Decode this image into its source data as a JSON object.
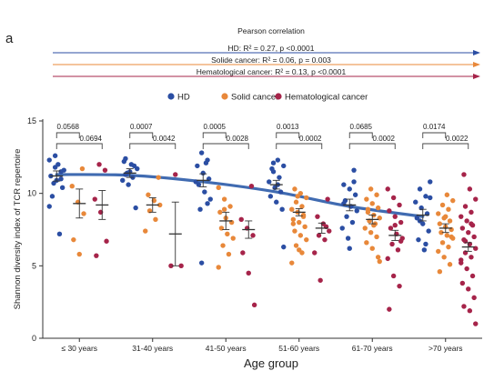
{
  "panel_label": "a",
  "pearson": {
    "title": "Pearson correlation",
    "lines": [
      {
        "label": "HD: R² = 0.27,  p <0.0001",
        "color": "#2b4ea3"
      },
      {
        "label": "Solide cancer: R² = 0.06,  p = 0.003",
        "color": "#e8883a"
      },
      {
        "label": "Hematological cancer: R² = 0.13, p <0.0001",
        "color": "#a6244a"
      }
    ]
  },
  "chart_data": {
    "type": "scatter",
    "title": "",
    "xlabel": "Age group",
    "ylabel": "Shannon diversity index of TCR repertoire",
    "ylim": [
      0,
      15
    ],
    "yticks": [
      0,
      5,
      10,
      15
    ],
    "categories": [
      "≤ 30 years",
      "31-40 years",
      "41-50 years",
      "51-60 years",
      "61-70 years",
      ">70 years"
    ],
    "legend": {
      "position": "top",
      "entries": [
        "HD",
        "Solid cancer",
        "Hematological cancer"
      ]
    },
    "series": [
      {
        "name": "HD",
        "color": "#2b4ea3",
        "mean": [
          11.2,
          11.4,
          10.9,
          10.6,
          9.2,
          8.5
        ],
        "sem": [
          0.35,
          0.3,
          0.45,
          0.3,
          0.4,
          0.4
        ],
        "points": [
          [
            12.3,
            11.8,
            11.5,
            11.2,
            10.9,
            10.4,
            9.8,
            12.0,
            11.6,
            10.7,
            7.2,
            9.1,
            12.6,
            11.0
          ],
          [
            12.4,
            12.0,
            11.7,
            11.4,
            11.1,
            10.9,
            10.6,
            11.9,
            12.2,
            11.5,
            9.0,
            11.3
          ],
          [
            12.8,
            12.3,
            11.9,
            11.4,
            11.0,
            10.6,
            10.1,
            9.6,
            8.9,
            12.1,
            10.8,
            5.2,
            9.3
          ],
          [
            12.3,
            11.9,
            11.5,
            11.1,
            10.8,
            10.4,
            10.1,
            9.8,
            9.4,
            8.9,
            11.7,
            10.6,
            6.3,
            12.1
          ],
          [
            11.6,
            10.6,
            10.3,
            9.9,
            9.5,
            9.1,
            8.8,
            8.4,
            8.0,
            7.6,
            6.9,
            10.8,
            9.3,
            6.2
          ],
          [
            10.8,
            10.3,
            9.8,
            9.4,
            9.0,
            8.6,
            8.3,
            7.9,
            7.4,
            6.8,
            6.1,
            9.7,
            8.1,
            6.5
          ]
        ]
      },
      {
        "name": "Solid cancer",
        "color": "#e8883a",
        "mean": [
          9.3,
          9.2,
          8.1,
          8.7,
          8.2,
          7.6
        ],
        "sem": [
          1.0,
          0.5,
          0.6,
          0.25,
          0.3,
          0.3
        ],
        "points": [
          [
            11.7,
            10.5,
            9.4,
            8.6,
            6.8,
            5.8
          ],
          [
            11.1,
            9.9,
            9.5,
            9.2,
            8.8,
            8.2,
            7.4
          ],
          [
            10.4,
            9.6,
            9.1,
            8.7,
            8.3,
            8.0,
            7.6,
            7.2,
            6.9,
            6.4,
            5.8,
            4.9,
            8.9
          ],
          [
            10.3,
            10.0,
            9.7,
            9.4,
            9.1,
            8.9,
            8.7,
            8.4,
            8.2,
            8.0,
            7.7,
            7.4,
            7.1,
            6.8,
            6.4,
            5.9,
            5.2,
            9.8,
            8.5,
            7.9,
            6.1
          ],
          [
            10.3,
            9.9,
            9.6,
            9.3,
            9.0,
            8.7,
            8.5,
            8.3,
            8.1,
            7.9,
            7.6,
            7.3,
            7.0,
            6.6,
            6.2,
            5.6,
            8.9,
            7.8,
            5.3
          ],
          [
            9.9,
            9.5,
            9.2,
            8.9,
            8.6,
            8.3,
            8.1,
            7.9,
            7.7,
            7.5,
            7.3,
            7.1,
            6.9,
            6.6,
            6.3,
            6.0,
            5.6,
            5.1,
            4.6,
            8.4,
            7.0
          ]
        ]
      },
      {
        "name": "Hematological cancer",
        "color": "#a6244a",
        "mean": [
          9.2,
          7.2,
          7.5,
          7.6,
          7.1,
          6.3
        ],
        "sem": [
          1.0,
          2.2,
          0.6,
          0.35,
          0.35,
          0.3
        ],
        "points": [
          [
            12.0,
            11.6,
            9.6,
            8.7,
            6.7,
            5.7
          ],
          [
            11.3,
            5.0,
            5.0
          ],
          [
            10.5,
            8.2,
            7.6,
            7.1,
            5.9,
            4.5,
            2.3
          ],
          [
            9.6,
            8.4,
            7.9,
            7.4,
            7.1,
            6.8,
            5.9,
            4.0,
            7.7
          ],
          [
            10.3,
            9.7,
            9.2,
            8.8,
            8.4,
            8.0,
            7.6,
            7.2,
            6.9,
            6.5,
            6.1,
            5.5,
            4.3,
            3.6,
            2.0,
            7.8,
            6.7
          ],
          [
            11.3,
            10.3,
            9.6,
            9.1,
            8.7,
            8.4,
            8.1,
            7.8,
            7.6,
            7.3,
            7.0,
            6.8,
            6.5,
            6.2,
            5.9,
            5.6,
            5.2,
            4.8,
            4.3,
            3.8,
            3.4,
            2.8,
            2.2,
            1.9,
            1.0,
            6.7,
            7.9,
            5.4
          ]
        ]
      }
    ],
    "trend": {
      "color": "#2b5ba8",
      "x": [
        0,
        1,
        2,
        3,
        4,
        5
      ],
      "y": [
        11.3,
        11.25,
        10.8,
        10.1,
        9.1,
        8.4
      ]
    },
    "pvalues": [
      {
        "group": 0,
        "top": "0.0568",
        "bottom": "0.0694"
      },
      {
        "group": 1,
        "top": "0.0007",
        "bottom": "0.0042"
      },
      {
        "group": 2,
        "top": "0.0005",
        "bottom": "0.0028"
      },
      {
        "group": 3,
        "top": "0.0013",
        "bottom": "0.0002"
      },
      {
        "group": 4,
        "top": "0.0685",
        "bottom": "0.0002"
      },
      {
        "group": 5,
        "top": "0.0174",
        "bottom": "0.0022"
      }
    ]
  }
}
